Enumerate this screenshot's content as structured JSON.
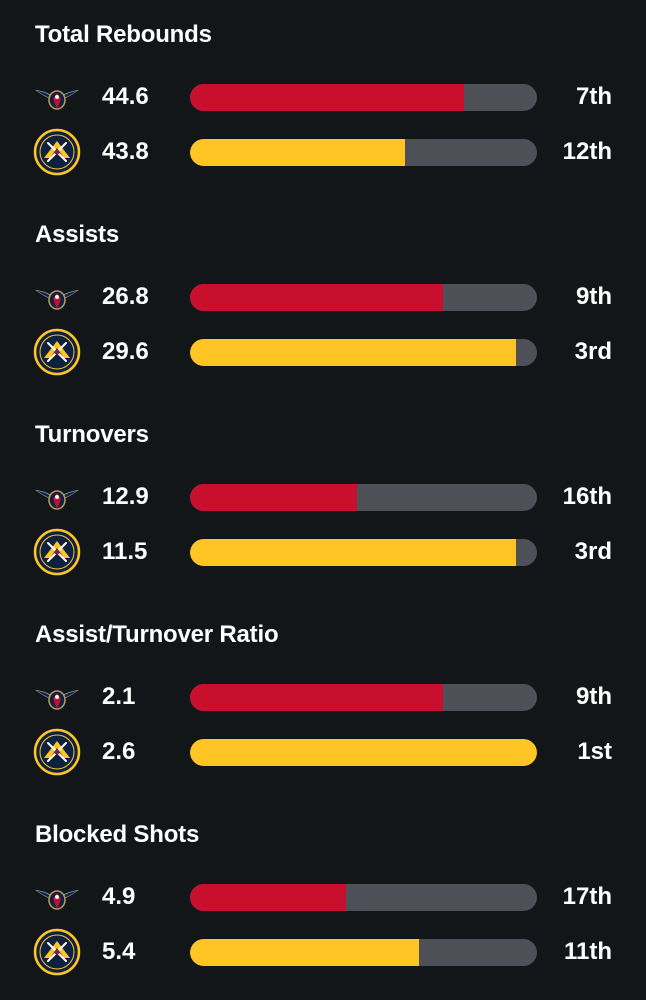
{
  "teams": {
    "pelicans": {
      "icon": "pelicans-logo",
      "bar_color": "#c8102e"
    },
    "nuggets": {
      "icon": "nuggets-logo",
      "bar_color": "#fec524"
    }
  },
  "stats": [
    {
      "title": "Total Rebounds",
      "rows": [
        {
          "team": "pelicans",
          "value": "44.6",
          "rank": "7th",
          "fill_percent": 79
        },
        {
          "team": "nuggets",
          "value": "43.8",
          "rank": "12th",
          "fill_percent": 62
        }
      ]
    },
    {
      "title": "Assists",
      "rows": [
        {
          "team": "pelicans",
          "value": "26.8",
          "rank": "9th",
          "fill_percent": 73
        },
        {
          "team": "nuggets",
          "value": "29.6",
          "rank": "3rd",
          "fill_percent": 94
        }
      ]
    },
    {
      "title": "Turnovers",
      "rows": [
        {
          "team": "pelicans",
          "value": "12.9",
          "rank": "16th",
          "fill_percent": 48
        },
        {
          "team": "nuggets",
          "value": "11.5",
          "rank": "3rd",
          "fill_percent": 94
        }
      ]
    },
    {
      "title": "Assist/Turnover Ratio",
      "rows": [
        {
          "team": "pelicans",
          "value": "2.1",
          "rank": "9th",
          "fill_percent": 73
        },
        {
          "team": "nuggets",
          "value": "2.6",
          "rank": "1st",
          "fill_percent": 100
        }
      ]
    },
    {
      "title": "Blocked Shots",
      "rows": [
        {
          "team": "pelicans",
          "value": "4.9",
          "rank": "17th",
          "fill_percent": 45
        },
        {
          "team": "nuggets",
          "value": "5.4",
          "rank": "11th",
          "fill_percent": 66
        }
      ]
    }
  ]
}
